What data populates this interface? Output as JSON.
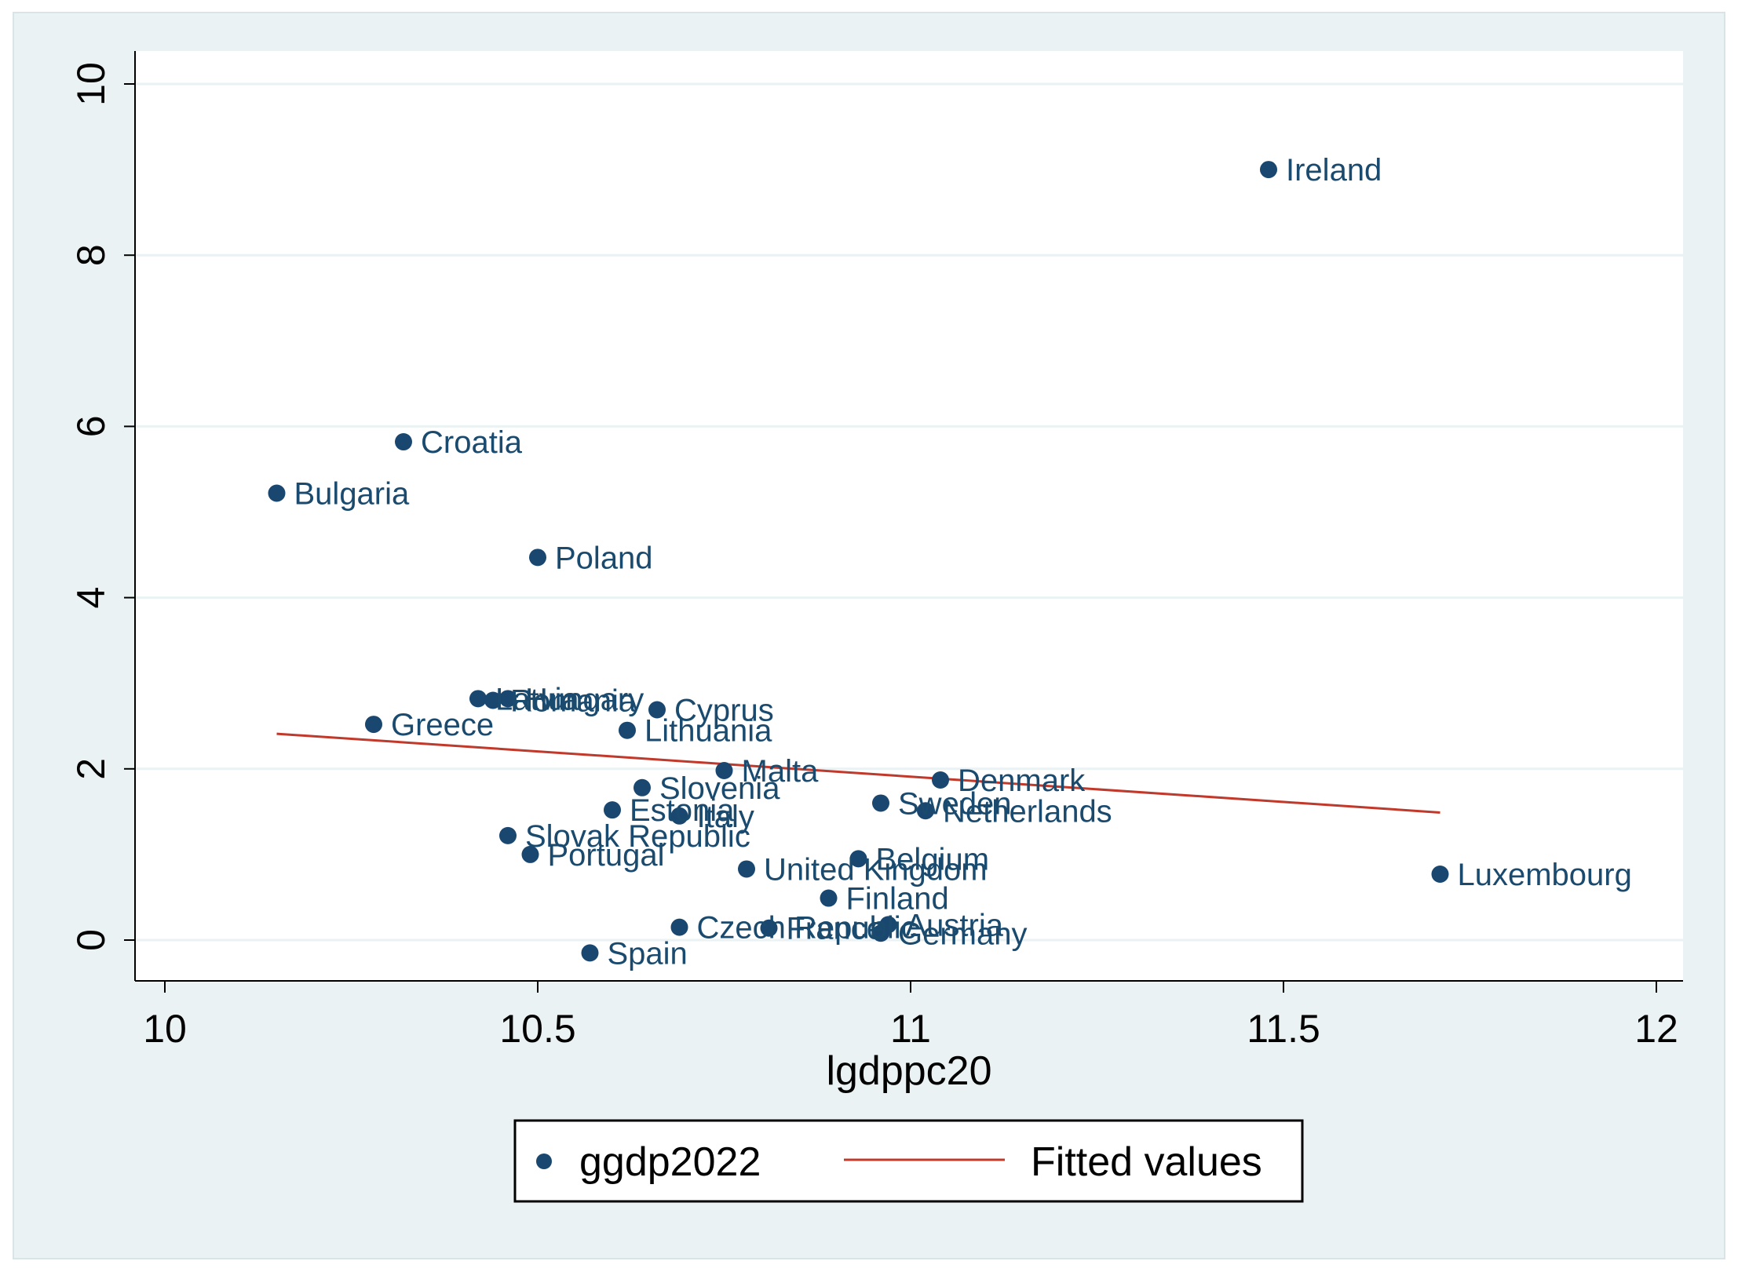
{
  "chart_data": {
    "type": "scatter",
    "title": "",
    "xlabel": "lgdppc20",
    "ylabel": "",
    "xlim": [
      10,
      12
    ],
    "ylim": [
      0,
      10
    ],
    "xticks": [
      "10",
      "10.5",
      "11",
      "11.5",
      "12"
    ],
    "yticks": [
      "0",
      "2",
      "4",
      "6",
      "8",
      "10"
    ],
    "grid": "horizontal",
    "legend_position": "bottom",
    "colors": {
      "marker": "#1a476f",
      "fit_line": "#c0392b",
      "plot_bg": "#ffffff",
      "outer_bg": "#eaf2f3",
      "grid": "#eaf2f3"
    },
    "series": [
      {
        "name": "ggdp2022",
        "kind": "scatter",
        "points": [
          {
            "label": "Ireland",
            "x": 11.48,
            "y": 9.0
          },
          {
            "label": "Croatia",
            "x": 10.32,
            "y": 5.82
          },
          {
            "label": "Bulgaria",
            "x": 10.15,
            "y": 5.22
          },
          {
            "label": "Poland",
            "x": 10.5,
            "y": 4.47
          },
          {
            "label": "Hungary",
            "x": 10.46,
            "y": 2.82
          },
          {
            "label": "Latvia",
            "x": 10.42,
            "y": 2.82
          },
          {
            "label": "Romania",
            "x": 10.44,
            "y": 2.8
          },
          {
            "label": "Cyprus",
            "x": 10.66,
            "y": 2.69
          },
          {
            "label": "Greece",
            "x": 10.28,
            "y": 2.52
          },
          {
            "label": "Lithuania",
            "x": 10.62,
            "y": 2.45
          },
          {
            "label": "Malta",
            "x": 10.75,
            "y": 1.98
          },
          {
            "label": "Denmark",
            "x": 11.04,
            "y": 1.87
          },
          {
            "label": "Slovenia",
            "x": 10.64,
            "y": 1.78
          },
          {
            "label": "Sweden",
            "x": 10.96,
            "y": 1.6
          },
          {
            "label": "Netherlands",
            "x": 11.02,
            "y": 1.51
          },
          {
            "label": "Estonia",
            "x": 10.6,
            "y": 1.52
          },
          {
            "label": "Italy",
            "x": 10.69,
            "y": 1.45
          },
          {
            "label": "Slovak Republic",
            "x": 10.46,
            "y": 1.22
          },
          {
            "label": "Portugal",
            "x": 10.49,
            "y": 1.0
          },
          {
            "label": "Belgium",
            "x": 10.93,
            "y": 0.95
          },
          {
            "label": "United Kingdom",
            "x": 10.78,
            "y": 0.83
          },
          {
            "label": "Luxembourg",
            "x": 11.71,
            "y": 0.77
          },
          {
            "label": "Finland",
            "x": 10.89,
            "y": 0.49
          },
          {
            "label": "Austria",
            "x": 10.97,
            "y": 0.18
          },
          {
            "label": "Czech Republic",
            "x": 10.69,
            "y": 0.15
          },
          {
            "label": "France",
            "x": 10.81,
            "y": 0.14
          },
          {
            "label": "Germany",
            "x": 10.96,
            "y": 0.08
          },
          {
            "label": "Spain",
            "x": 10.57,
            "y": -0.15
          }
        ]
      },
      {
        "name": "Fitted values",
        "kind": "line",
        "x": [
          10.15,
          11.71
        ],
        "y": [
          2.41,
          1.49
        ]
      }
    ],
    "legend": [
      {
        "label": "ggdp2022",
        "kind": "marker"
      },
      {
        "label": "Fitted values",
        "kind": "line"
      }
    ]
  }
}
